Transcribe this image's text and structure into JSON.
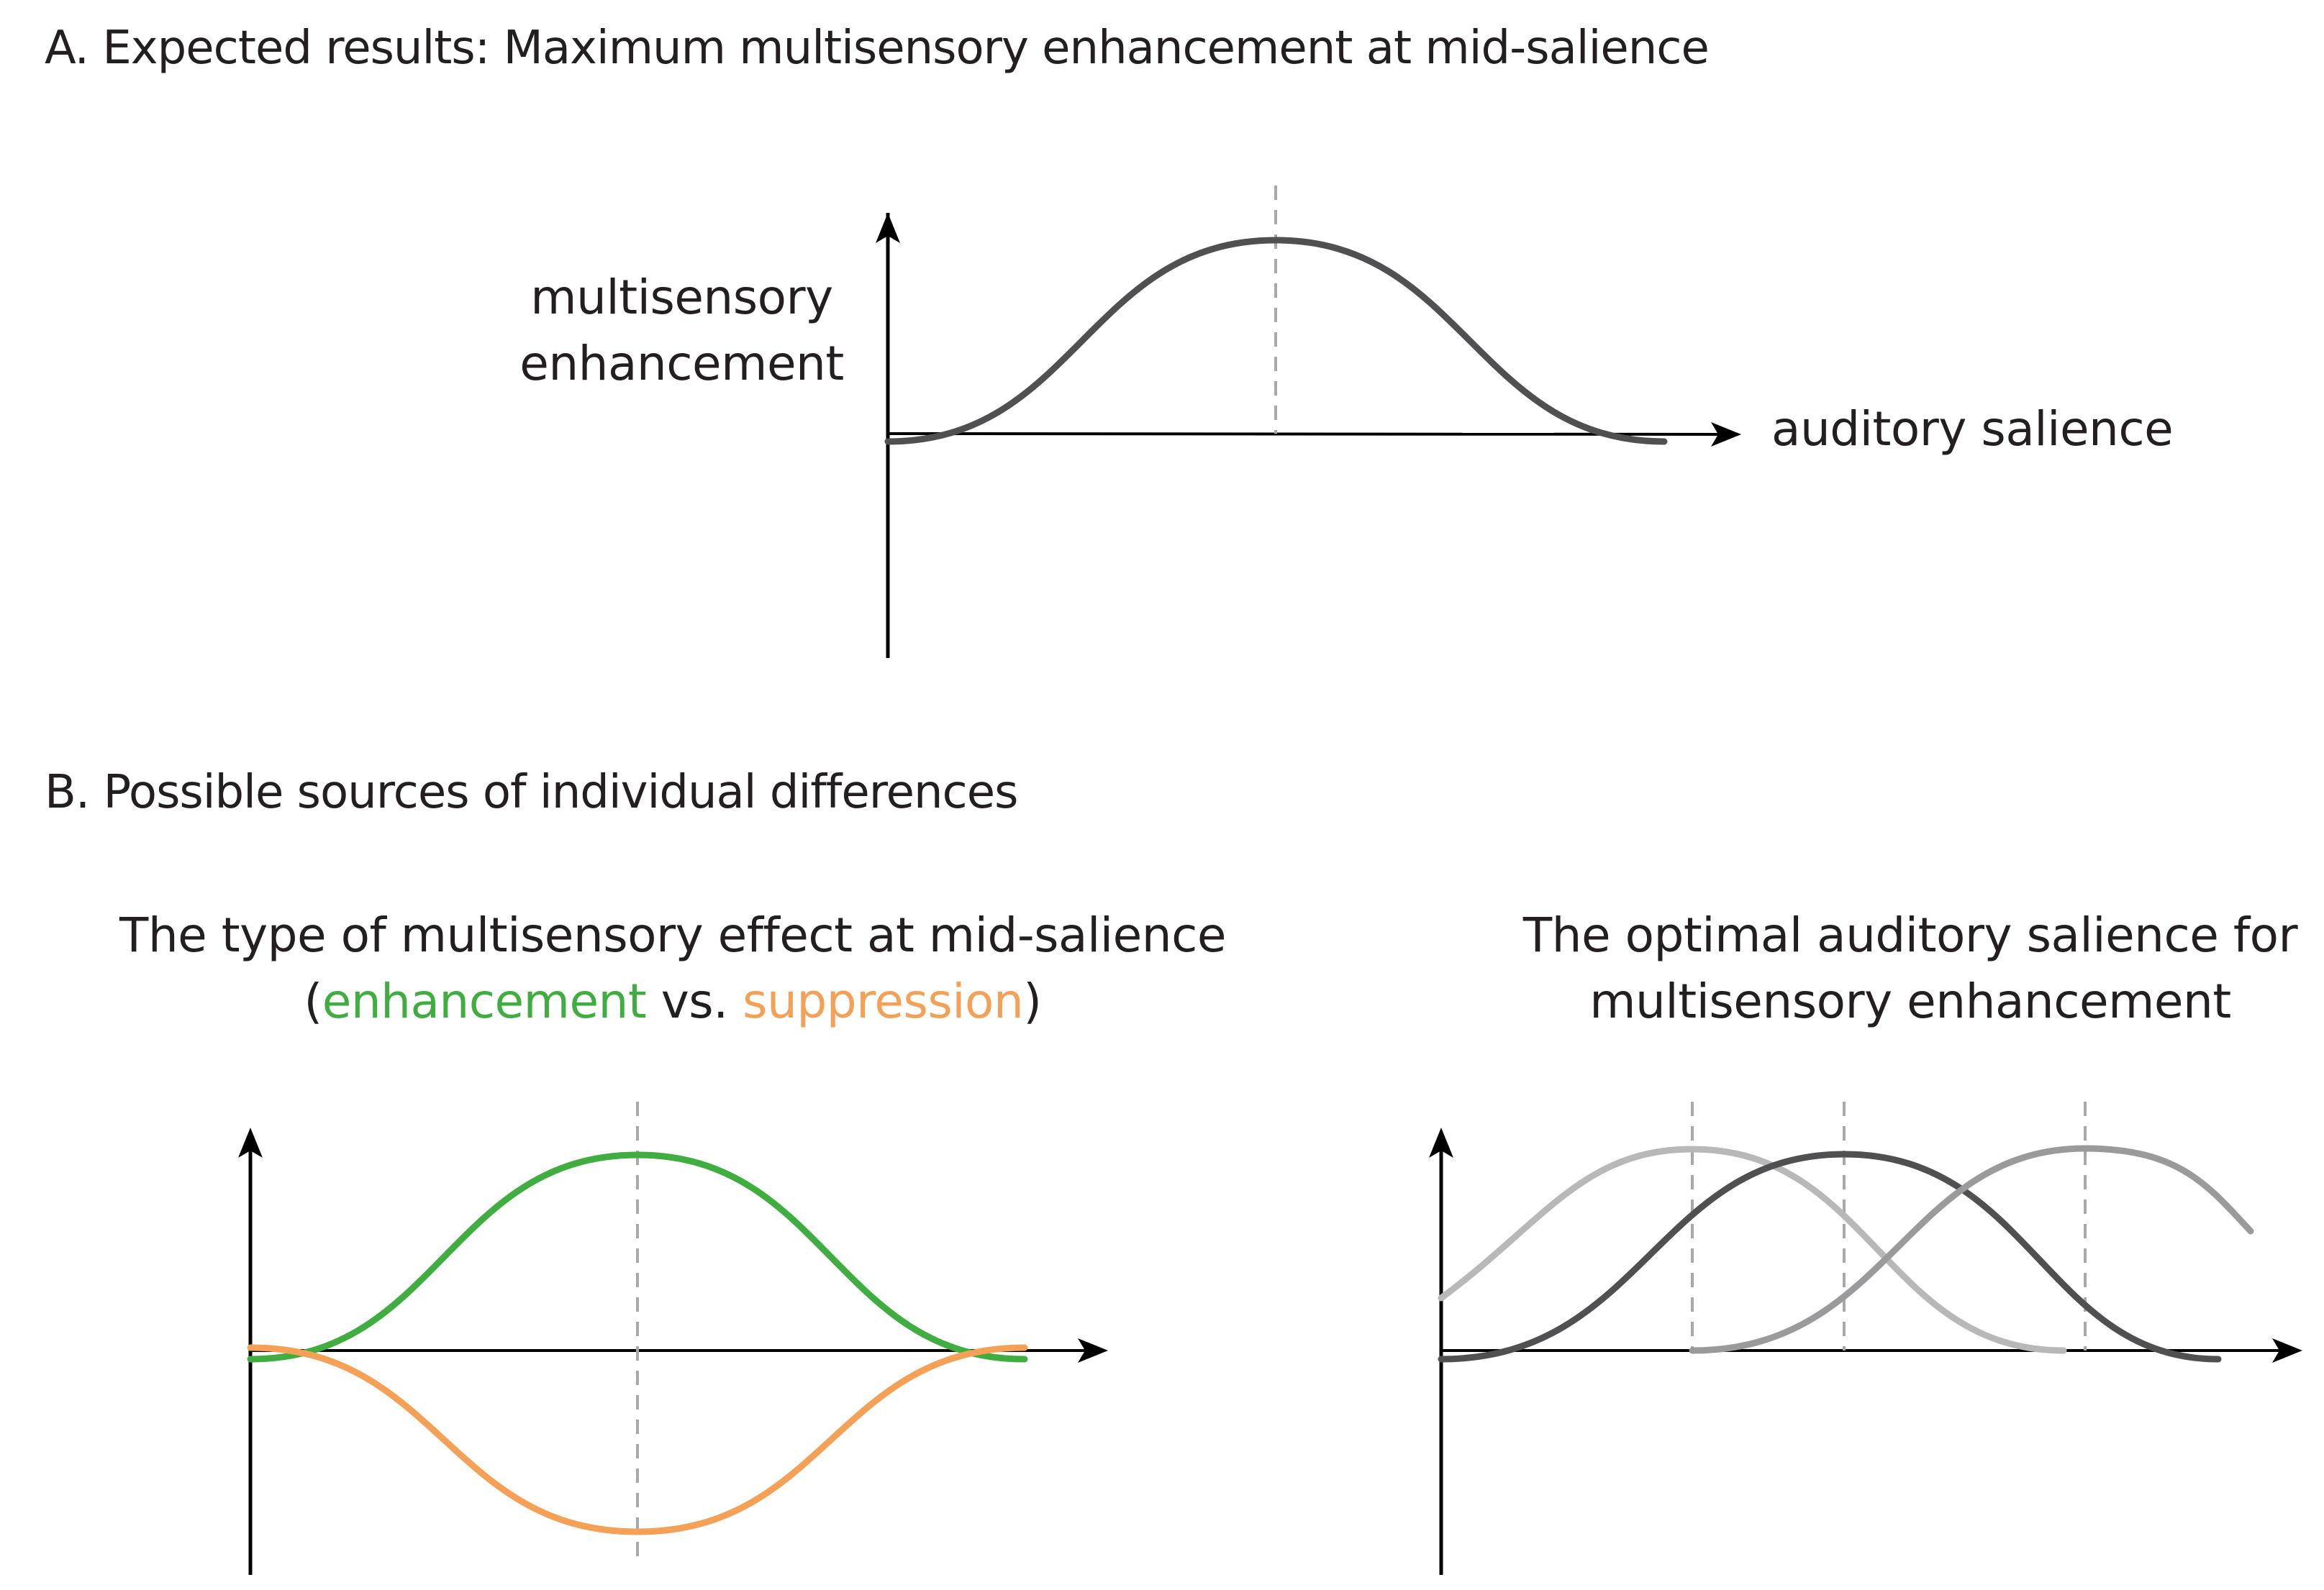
{
  "panel_a": {
    "title": "A. Expected results: Maximum multisensory enhancement at mid-salience",
    "y_label_line1": "multisensory",
    "y_label_line2": "enhancement",
    "x_label": "auditory salience"
  },
  "panel_b": {
    "title": "B. Possible sources of individual differences",
    "left": {
      "title_line1": "The type of multisensory effect at mid-salience",
      "open_paren": "(",
      "enhancement_word": "enhancement",
      "vs": " vs. ",
      "suppression_word": "suppression",
      "close_paren": ")"
    },
    "right": {
      "title_line1": "The optimal auditory salience for",
      "title_line2": "multisensory enhancement"
    }
  },
  "colors": {
    "curve_main": "#505052",
    "enhancement": "#3fad3f",
    "suppression": "#f5a057",
    "gray_light": "#b8b8b8",
    "gray_mid": "#9a9a9c",
    "dashed": "#a8a8a8"
  }
}
